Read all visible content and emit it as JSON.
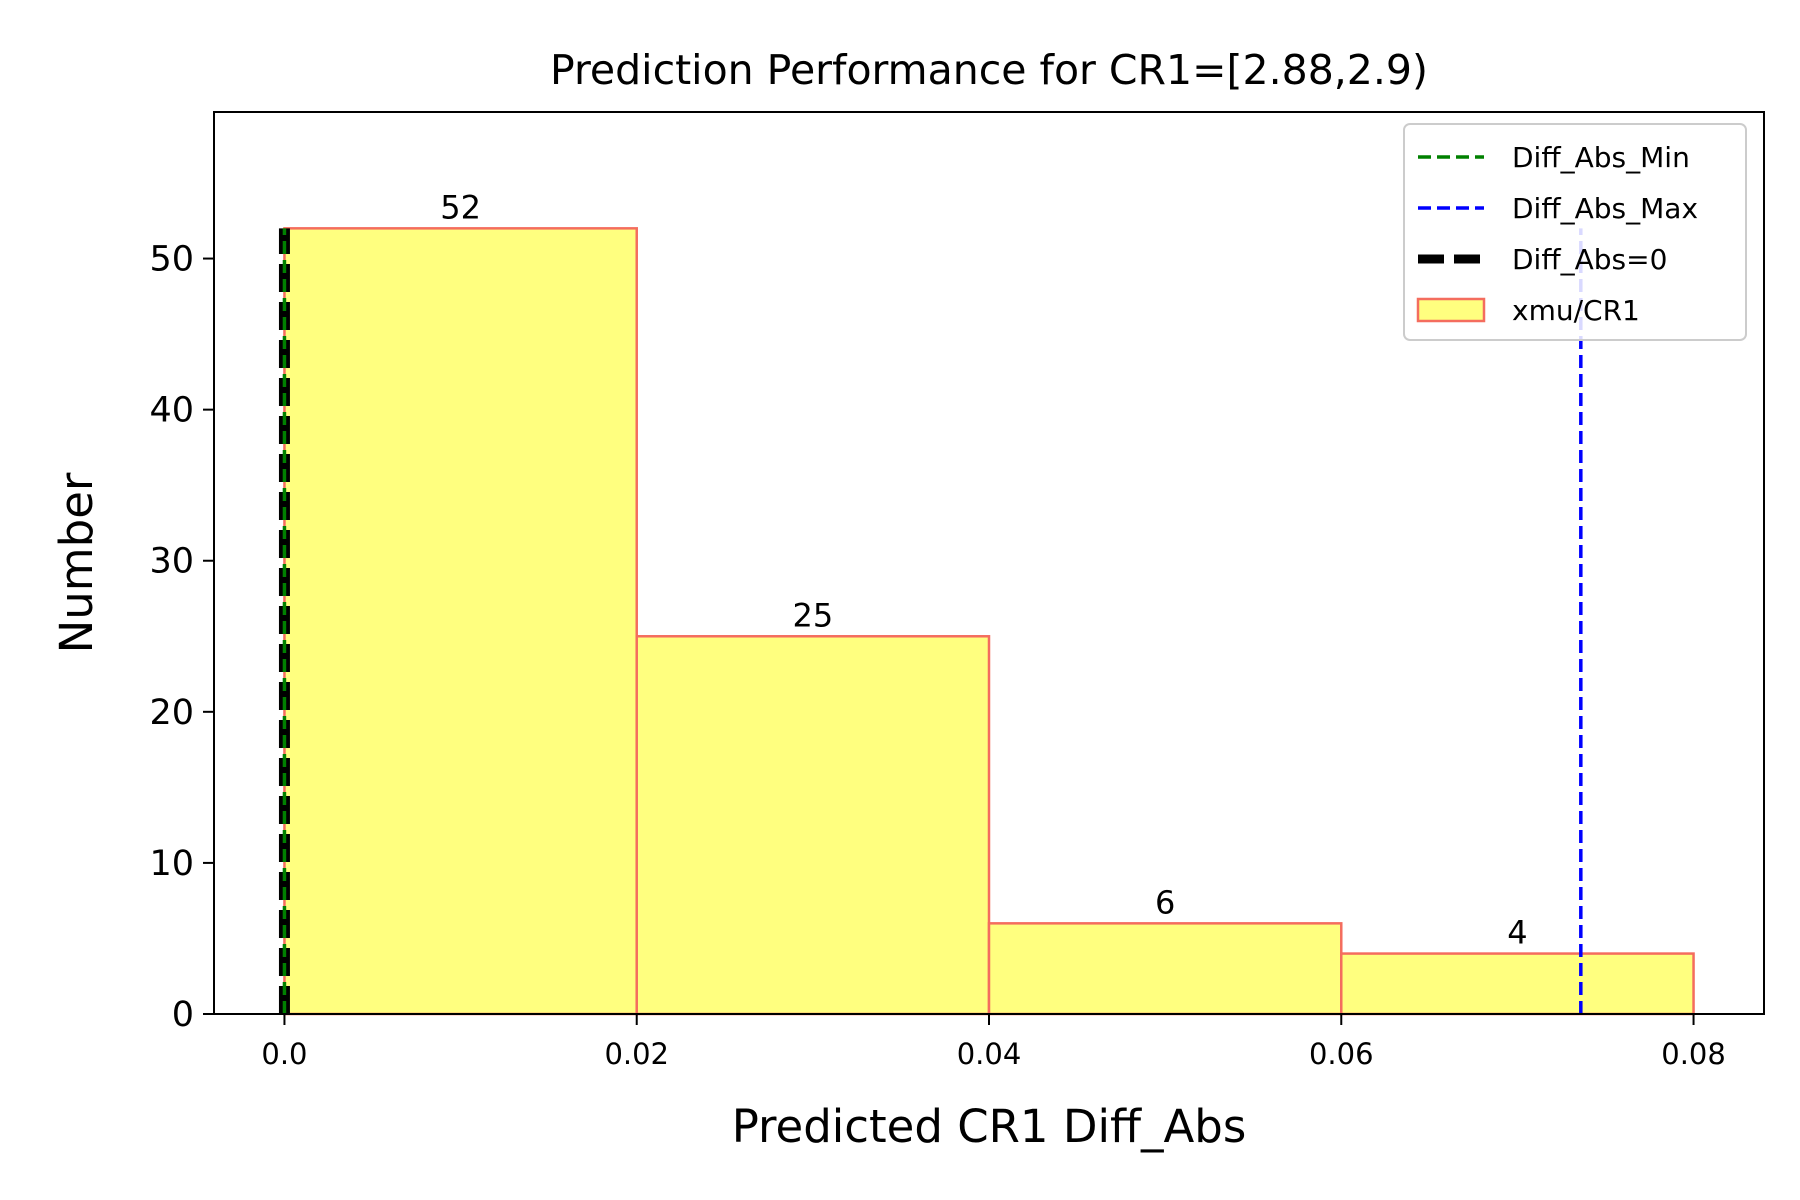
{
  "chart_data": {
    "type": "bar",
    "title": "Prediction Performance for CR1=[2.88,2.9)",
    "xlabel": "Predicted CR1 Diff_Abs",
    "ylabel": "Number",
    "xlim": [
      -0.004,
      0.084
    ],
    "ylim": [
      0,
      59.7
    ],
    "x_ticks": [
      "0.0",
      "0.02",
      "0.04",
      "0.06",
      "0.08"
    ],
    "x_tick_values": [
      0.0,
      0.02,
      0.04,
      0.06,
      0.08
    ],
    "y_ticks": [
      "0",
      "10",
      "20",
      "30",
      "40",
      "50"
    ],
    "y_tick_values": [
      0,
      10,
      20,
      30,
      40,
      50
    ],
    "bins": [
      [
        0.0,
        0.02
      ],
      [
        0.02,
        0.04
      ],
      [
        0.04,
        0.06
      ],
      [
        0.06,
        0.08
      ]
    ],
    "values": [
      52,
      25,
      6,
      4
    ],
    "bar_labels": [
      "52",
      "25",
      "6",
      "4"
    ],
    "bar_fill": "#ffff7f",
    "bar_edge": "#f46d5e",
    "vlines": [
      {
        "name": "Diff_Abs_Min",
        "x": 0.0,
        "color": "#008000",
        "style": "dashed"
      },
      {
        "name": "Diff_Abs_Max",
        "x": 0.0736,
        "color": "#0000ff",
        "style": "dashed"
      },
      {
        "name": "Diff_Abs=0",
        "x": 0.0,
        "color": "#000000",
        "style": "dashed-thick"
      }
    ],
    "legend": {
      "placement": "top-right",
      "entries": [
        "Diff_Abs_Min",
        "Diff_Abs_Max",
        "Diff_Abs=0",
        "xmu/CR1"
      ]
    },
    "grid": false
  }
}
